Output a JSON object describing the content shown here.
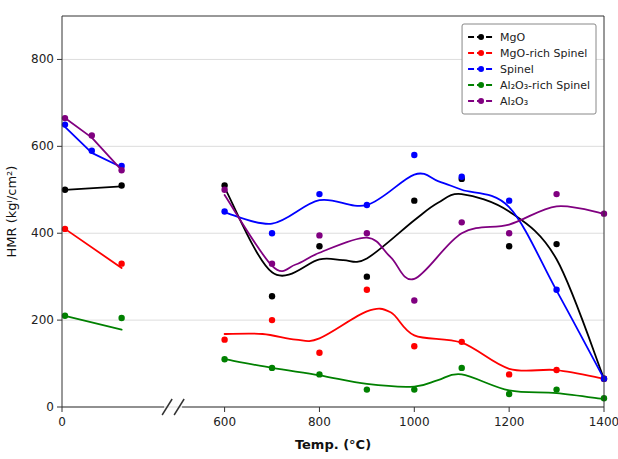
{
  "chart_data": {
    "type": "line",
    "xlabel": "Temp. (°C)",
    "ylabel": "HMR (kgⁱ/cm²)",
    "xlim": [
      0,
      1400
    ],
    "x_break": [
      200,
      600
    ],
    "xticks": [
      0,
      600,
      800,
      1000,
      1200,
      1400
    ],
    "ylim": [
      0,
      900
    ],
    "yticks": [
      0,
      200,
      400,
      600,
      800
    ],
    "grid": "y",
    "legend": "upper right",
    "marker": "circle",
    "series": [
      {
        "name": "MgO",
        "color": "#000000",
        "x": [
          10,
          200,
          600,
          700,
          800,
          900,
          1000,
          1100,
          1200,
          1300,
          1400
        ],
        "values": [
          500,
          510,
          510,
          255,
          370,
          300,
          475,
          525,
          370,
          375,
          65
        ],
        "curve_x": [
          10,
          200,
          600,
          700,
          800,
          850,
          900,
          1000,
          1050,
          1100,
          1200,
          1300,
          1400
        ],
        "curve_values": [
          500,
          508,
          505,
          310,
          340,
          338,
          342,
          430,
          470,
          490,
          450,
          340,
          65
        ]
      },
      {
        "name": "MgO-rich Spinel",
        "color": "#ff0000",
        "x": [
          10,
          200,
          600,
          700,
          800,
          900,
          1000,
          1100,
          1200,
          1300,
          1400
        ],
        "values": [
          410,
          330,
          155,
          200,
          125,
          270,
          140,
          150,
          75,
          85,
          65
        ],
        "curve_x": [
          10,
          200,
          600,
          680,
          750,
          800,
          900,
          950,
          1000,
          1100,
          1200,
          1300,
          1400
        ],
        "curve_values": [
          410,
          320,
          168,
          168,
          155,
          158,
          220,
          218,
          165,
          148,
          88,
          85,
          65
        ]
      },
      {
        "name": "Spinel",
        "color": "#0000ff",
        "x": [
          10,
          100,
          200,
          600,
          700,
          800,
          900,
          1000,
          1100,
          1200,
          1300,
          1400
        ],
        "values": [
          650,
          590,
          555,
          450,
          400,
          490,
          465,
          580,
          530,
          475,
          270,
          65
        ],
        "curve_x": [
          10,
          100,
          200,
          600,
          700,
          800,
          900,
          1000,
          1050,
          1100,
          1200,
          1300,
          1400
        ],
        "curve_values": [
          645,
          585,
          552,
          448,
          422,
          476,
          465,
          535,
          520,
          500,
          460,
          268,
          65
        ]
      },
      {
        "name": "Al₂O₃-rich Spinel",
        "color": "#008000",
        "x": [
          10,
          200,
          600,
          700,
          800,
          900,
          1000,
          1100,
          1200,
          1300,
          1400
        ],
        "values": [
          210,
          205,
          110,
          90,
          75,
          40,
          40,
          90,
          30,
          40,
          20
        ],
        "curve_x": [
          10,
          200,
          600,
          700,
          800,
          900,
          1000,
          1050,
          1100,
          1200,
          1300,
          1400
        ],
        "curve_values": [
          210,
          178,
          110,
          90,
          73,
          53,
          47,
          62,
          75,
          38,
          32,
          18
        ]
      },
      {
        "name": "Al₂O₃",
        "color": "#800080",
        "x": [
          10,
          100,
          200,
          600,
          700,
          800,
          900,
          1000,
          1100,
          1200,
          1300,
          1400
        ],
        "values": [
          665,
          625,
          545,
          500,
          330,
          395,
          400,
          245,
          425,
          400,
          490,
          445
        ],
        "curve_x": [
          10,
          100,
          200,
          600,
          700,
          750,
          800,
          900,
          950,
          1000,
          1100,
          1200,
          1300,
          1400
        ],
        "curve_values": [
          665,
          620,
          545,
          488,
          325,
          328,
          355,
          390,
          345,
          295,
          400,
          420,
          462,
          445
        ]
      }
    ]
  }
}
